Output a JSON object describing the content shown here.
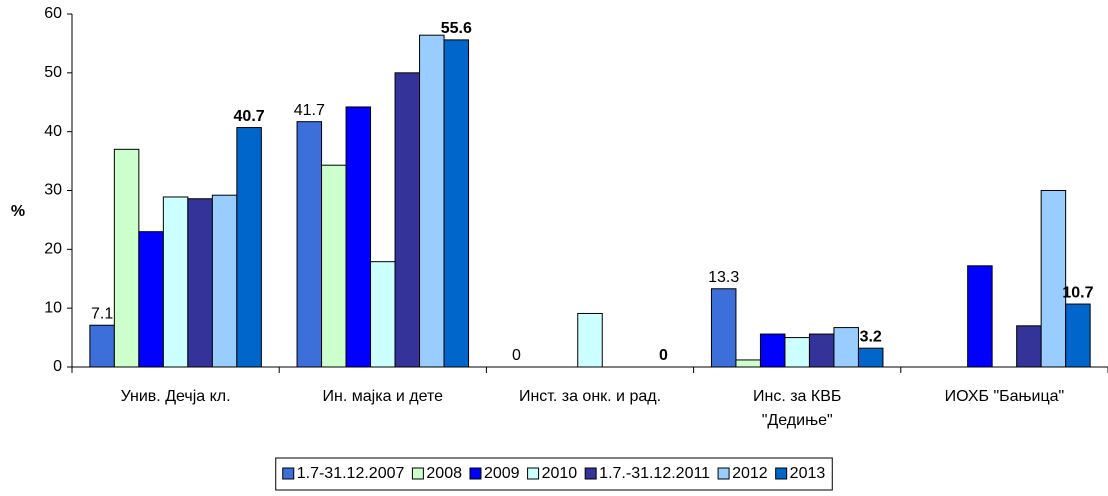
{
  "chart_data": {
    "type": "bar",
    "y_label": "%",
    "categories": [
      "Унив. Дечја кл.",
      "Ин. мајка и дете",
      "Инст. за онк. и рад.",
      [
        "Инс. за КВБ",
        "\"Дедиње\""
      ],
      "ИОХБ \"Бањица\""
    ],
    "series": [
      {
        "name": "1.7-31.12.2007",
        "color": "#3d6fdb",
        "values": [
          7.1,
          41.7,
          0,
          13.3,
          null
        ],
        "show_labels": true,
        "bold_labels": false
      },
      {
        "name": "2008",
        "color": "#ccffcc",
        "values": [
          37,
          34.3,
          null,
          1.2,
          null
        ],
        "show_labels": false,
        "bold_labels": false
      },
      {
        "name": "2009",
        "color": "#0000ff",
        "values": [
          23,
          44.2,
          null,
          5.6,
          17.2
        ],
        "show_labels": false,
        "bold_labels": false
      },
      {
        "name": "2010",
        "color": "#ccffff",
        "values": [
          28.9,
          17.9,
          9.1,
          5,
          null
        ],
        "show_labels": false,
        "bold_labels": false
      },
      {
        "name": "1.7.-31.12.2011",
        "color": "#333399",
        "values": [
          28.6,
          50,
          null,
          5.6,
          7
        ],
        "show_labels": false,
        "bold_labels": false
      },
      {
        "name": "2012",
        "color": "#99ccff",
        "values": [
          29.2,
          56.4,
          null,
          6.7,
          30
        ],
        "show_labels": false,
        "bold_labels": false
      },
      {
        "name": "2013",
        "color": "#0066cc",
        "values": [
          40.7,
          55.6,
          0,
          3.2,
          10.7
        ],
        "show_labels": true,
        "bold_labels": true
      }
    ],
    "ylim": [
      0,
      60
    ],
    "yticks": [
      0,
      10,
      20,
      30,
      40,
      50,
      60
    ],
    "grid": false,
    "legend": "bottom"
  }
}
